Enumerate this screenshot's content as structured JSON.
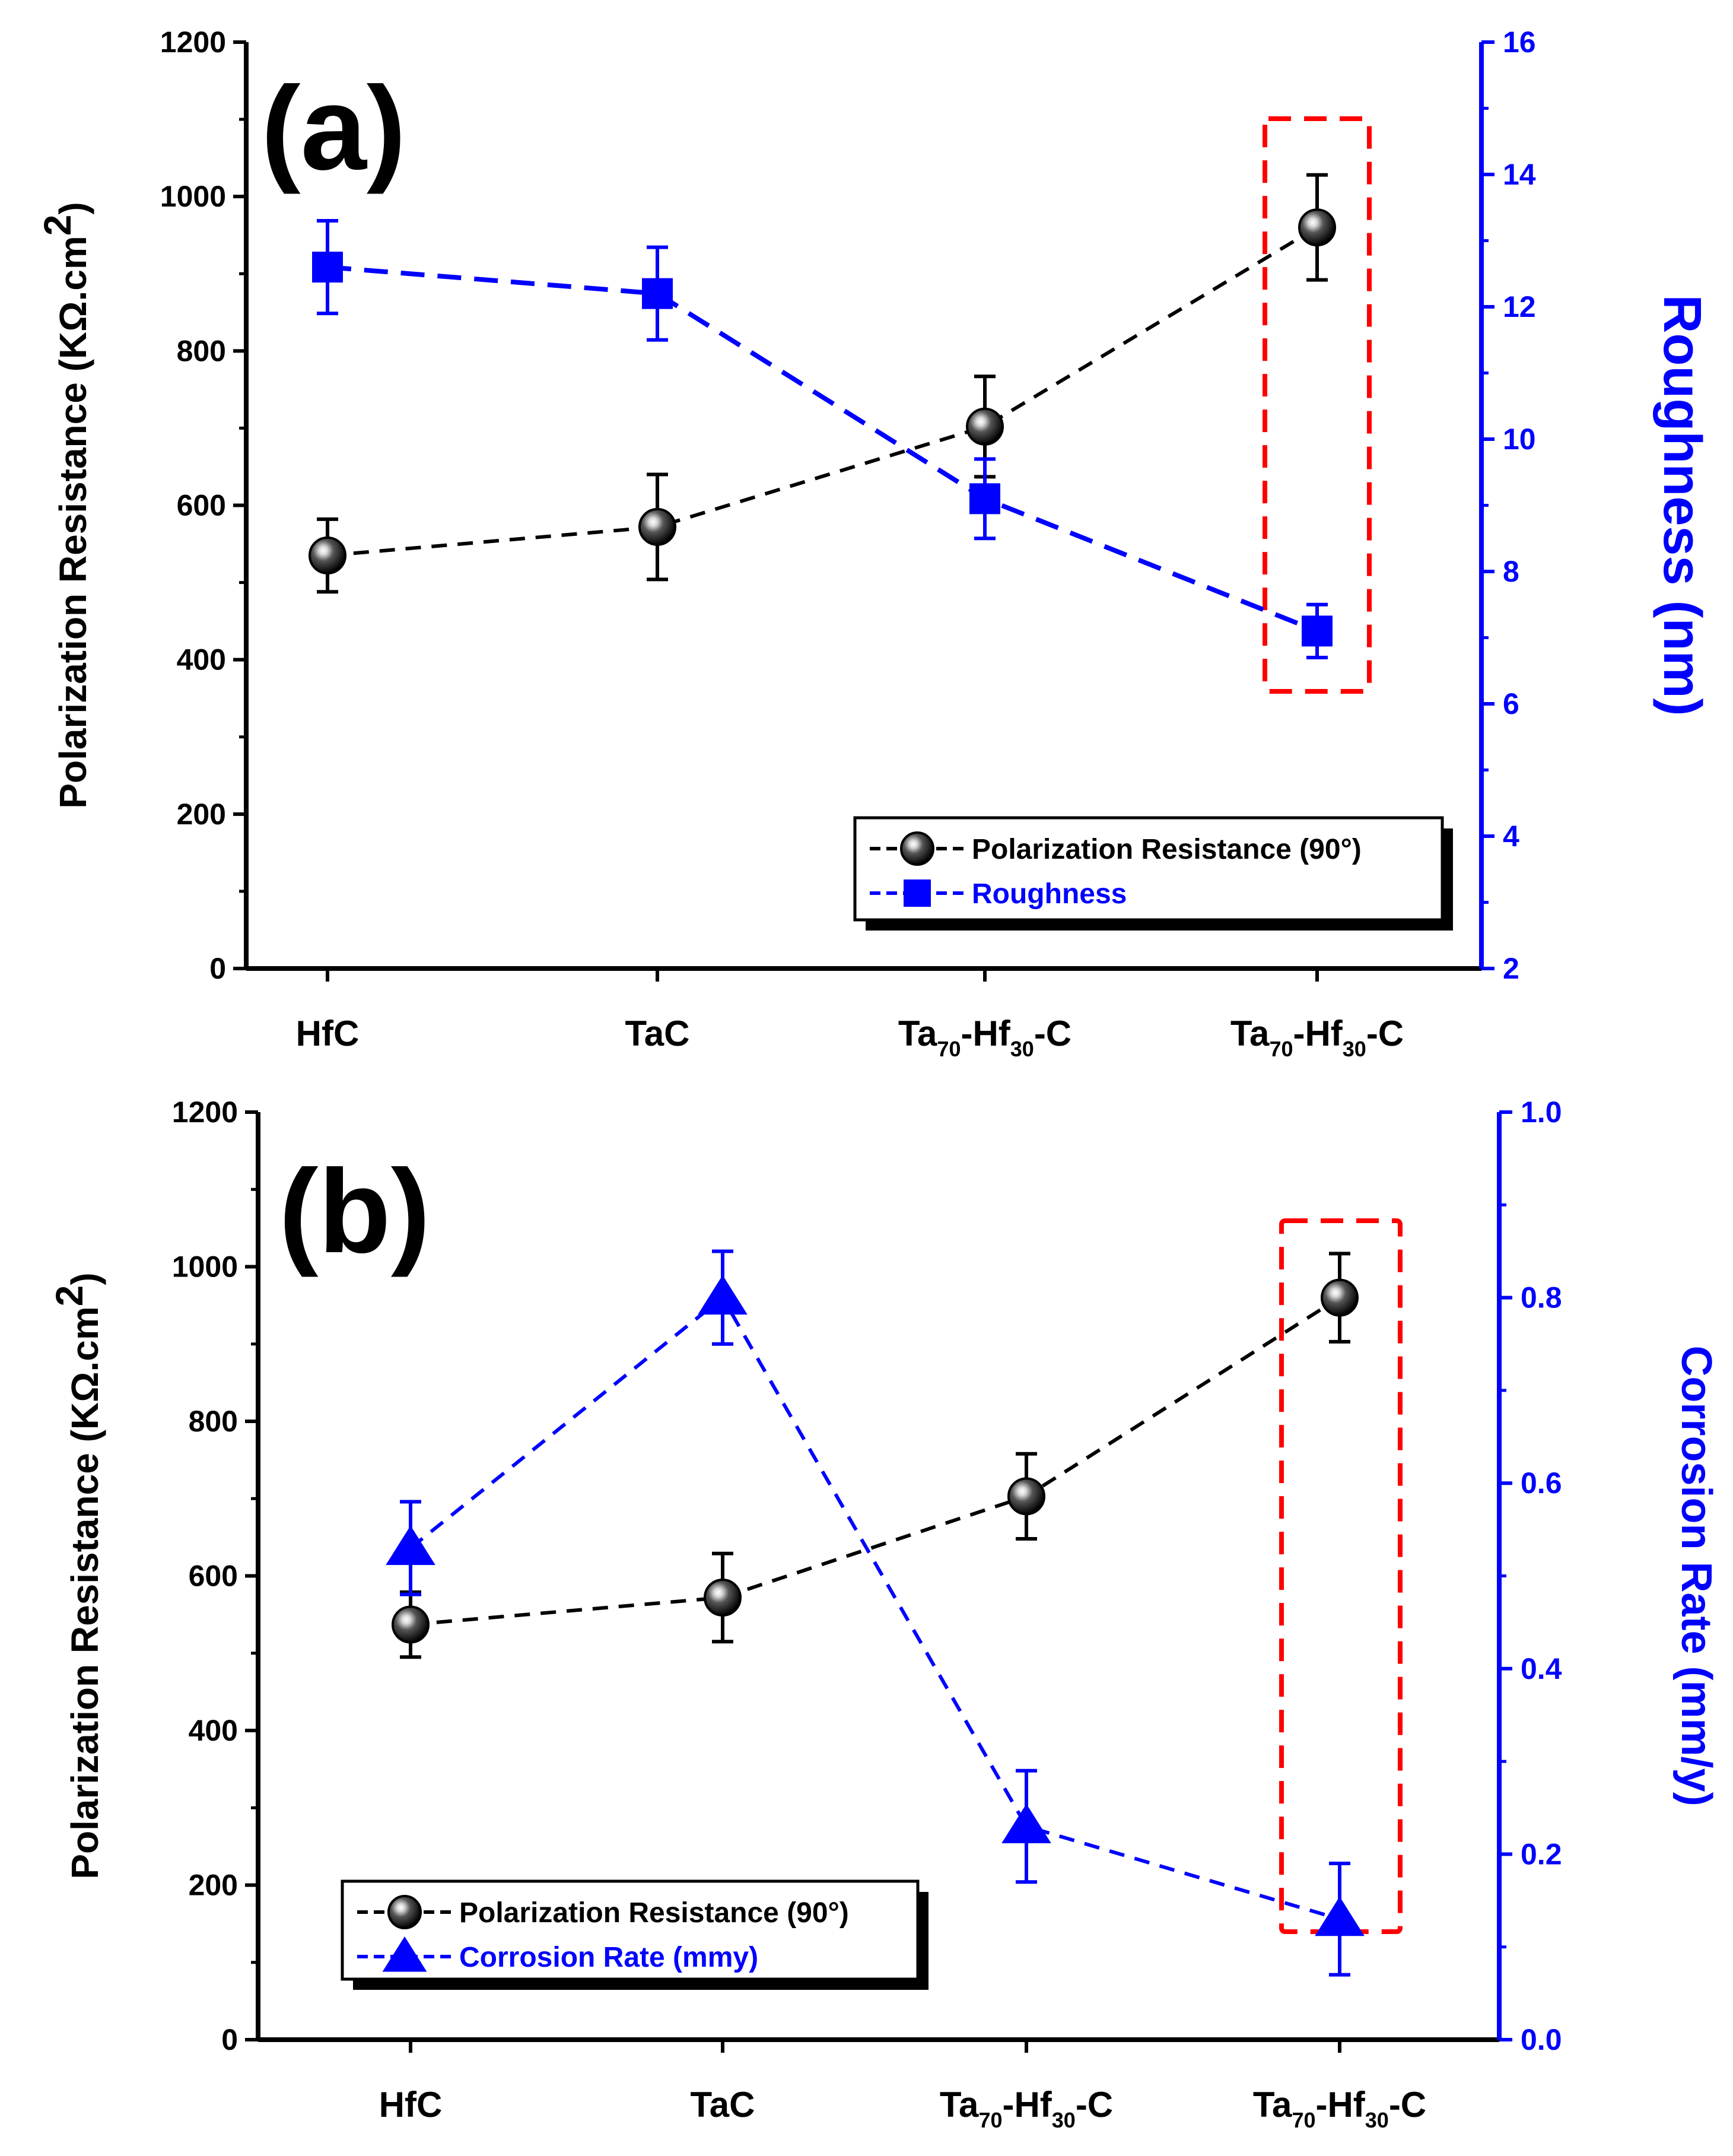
{
  "chart_data": [
    {
      "panel_label": "(a)",
      "type": "line",
      "categories": [
        "HfC",
        "TaC",
        "Ta70-Hf30-C",
        "Ta70-Hf30-C"
      ],
      "category_labels": [
        {
          "main": "HfC",
          "parts": [
            [
              "HfC",
              ""
            ]
          ]
        },
        {
          "main": "TaC",
          "parts": [
            [
              "TaC",
              ""
            ]
          ]
        },
        {
          "main": "Ta70-Hf30-C",
          "parts": [
            [
              "Ta",
              "70"
            ],
            [
              "-Hf",
              "30"
            ],
            [
              "-C",
              ""
            ]
          ]
        },
        {
          "main": "Ta70-Hf30-C",
          "parts": [
            [
              "Ta",
              "70"
            ],
            [
              "-Hf",
              "30"
            ],
            [
              "-C",
              ""
            ]
          ]
        }
      ],
      "ylabel": "Polarization Resistance (KΩ.cm2)",
      "ylabel_parts": {
        "text": "Polarization Resistance (",
        "unit": "KΩ.cm",
        "sup": "2",
        "close": ")"
      },
      "y2label": "Roughness (nm)",
      "ylim": [
        0,
        1200
      ],
      "y2lim": [
        2,
        16
      ],
      "yticks": [
        0,
        200,
        400,
        600,
        800,
        1000,
        1200
      ],
      "y2ticks": [
        2,
        4,
        6,
        8,
        10,
        12,
        14,
        16
      ],
      "series": [
        {
          "name": "Polarization Resistance (90°)",
          "axis": "left",
          "color": "#000000",
          "marker": "sphere",
          "values": [
            535,
            572,
            702,
            960
          ],
          "errors": [
            47,
            68,
            65,
            68
          ]
        },
        {
          "name": "Roughness",
          "axis": "right",
          "color": "#0000ff",
          "marker": "square",
          "values": [
            12.6,
            12.2,
            9.1,
            7.1
          ],
          "errors": [
            0.7,
            0.7,
            0.6,
            0.4
          ]
        }
      ],
      "highlight_category_index": 3,
      "highlight_color": "#ff0000",
      "legend_position": "bottom-right"
    },
    {
      "panel_label": "(b)",
      "type": "line",
      "categories": [
        "HfC",
        "TaC",
        "Ta70-Hf30-C",
        "Ta70-Hf30-C"
      ],
      "category_labels": [
        {
          "main": "HfC",
          "parts": [
            [
              "HfC",
              ""
            ]
          ]
        },
        {
          "main": "TaC",
          "parts": [
            [
              "TaC",
              ""
            ]
          ]
        },
        {
          "main": "Ta70-Hf30-C",
          "parts": [
            [
              "Ta",
              "70"
            ],
            [
              "-Hf",
              "30"
            ],
            [
              "-C",
              ""
            ]
          ]
        },
        {
          "main": "Ta70-Hf30-C",
          "parts": [
            [
              "Ta",
              "70"
            ],
            [
              "-Hf",
              "30"
            ],
            [
              "-C",
              ""
            ]
          ]
        }
      ],
      "ylabel": "Polarization Resistance (KΩ.cm2)",
      "ylabel_parts": {
        "text": "Polarization Resistance (",
        "unit": "KΩ.cm",
        "sup": "2",
        "close": ")"
      },
      "y2label": "Corrosion Rate (mm/y)",
      "ylim": [
        0,
        1200
      ],
      "y2lim": [
        0.0,
        1.0
      ],
      "yticks": [
        0,
        200,
        400,
        600,
        800,
        1000,
        1200
      ],
      "y2ticks": [
        "0.0",
        "0.2",
        "0.4",
        "0.6",
        "0.8",
        "1.0"
      ],
      "series": [
        {
          "name": "Polarization Resistance (90°)",
          "axis": "left",
          "color": "#000000",
          "marker": "sphere",
          "values": [
            537,
            572,
            703,
            960
          ],
          "errors": [
            42,
            57,
            55,
            57
          ]
        },
        {
          "name": "Corrosion Rate (mmy)",
          "axis": "right",
          "color": "#0000ff",
          "marker": "triangle",
          "values": [
            0.53,
            0.8,
            0.23,
            0.13
          ],
          "errors": [
            0.05,
            0.05,
            0.06,
            0.06
          ]
        }
      ],
      "highlight_category_index": 3,
      "highlight_color": "#ff0000",
      "legend_position": "bottom-left"
    }
  ]
}
